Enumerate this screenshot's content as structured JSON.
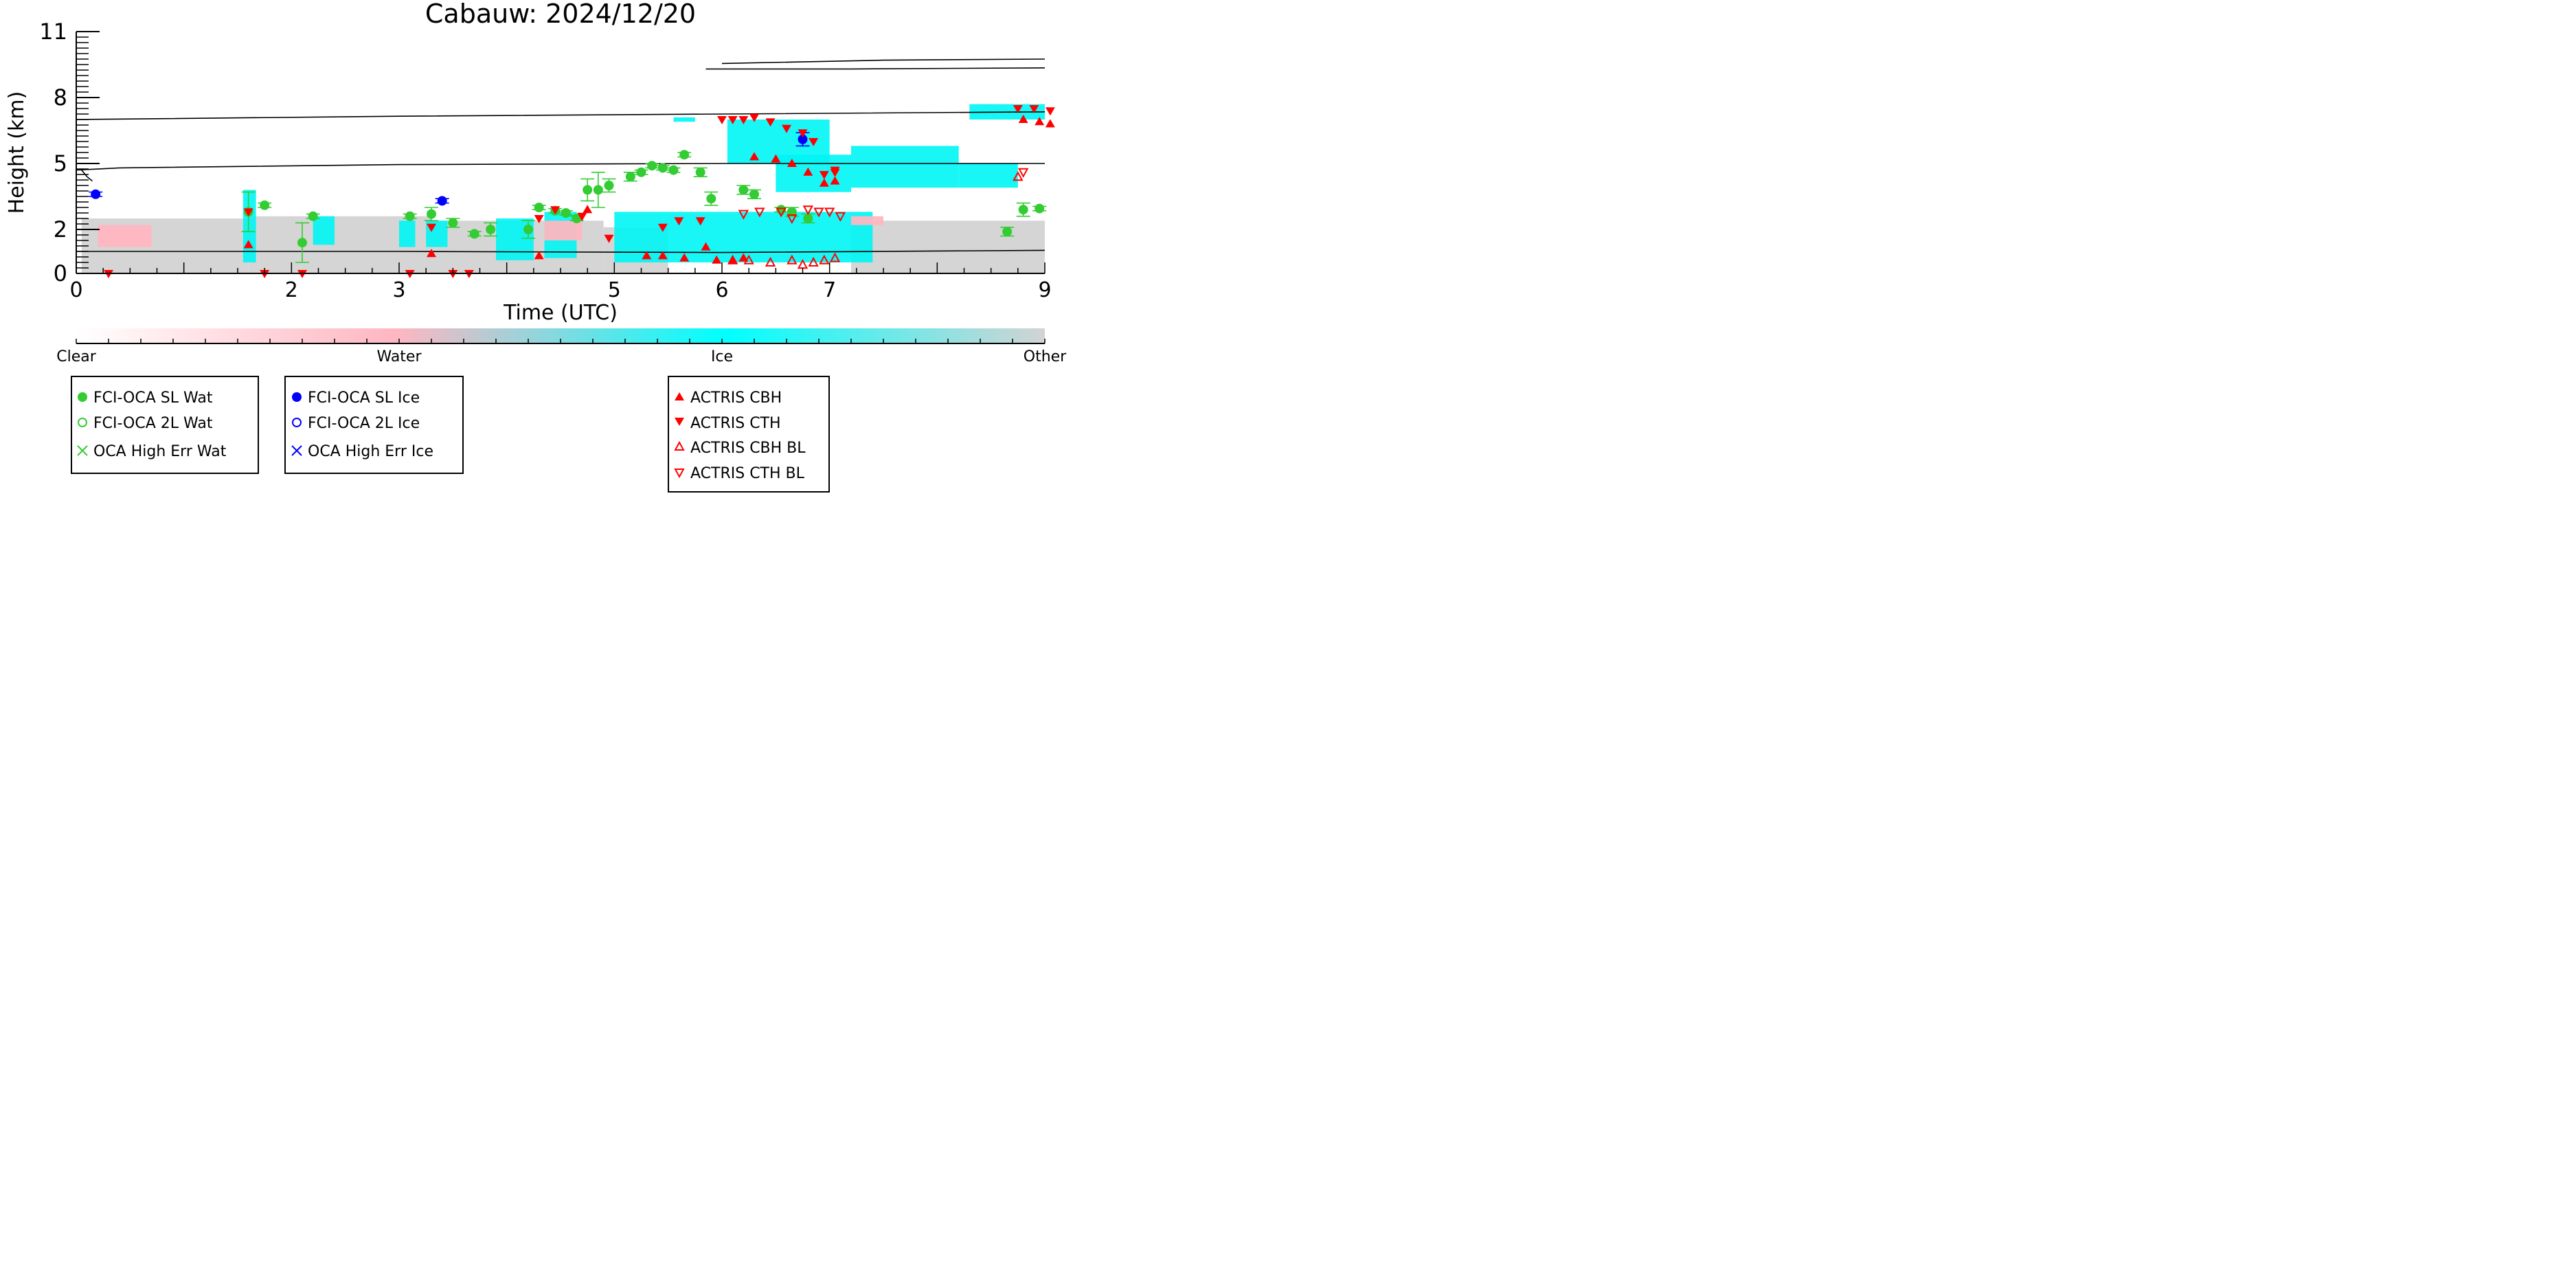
{
  "chart_data": {
    "type": "scatter",
    "title": "Cabauw: 2024/12/20",
    "xlabel": "Time (UTC)",
    "ylabel": "Height (km)",
    "xlim": [
      0,
      9
    ],
    "ylim": [
      0,
      11
    ],
    "x_ticks": [
      0,
      2,
      3,
      5,
      6,
      7,
      9
    ],
    "y_ticks": [
      0,
      2,
      5,
      8,
      11
    ],
    "x_tick_labels": [
      "0",
      "2",
      "3",
      "5",
      "6",
      "7",
      "9"
    ],
    "y_tick_labels": [
      "0",
      "2",
      "5",
      "8",
      "11"
    ],
    "colorbar": {
      "labels": [
        "Clear",
        "Water",
        "Ice",
        "Other"
      ],
      "colors": [
        "#ffffff",
        "#ffb6c1",
        "#00ffff",
        "#d3d3d3"
      ]
    },
    "colors": {
      "sl_wat": "#33cc33",
      "sl_ice": "#0000ff",
      "actris": "#ff0000",
      "lidar_ice": "#00f5f5",
      "lidar_water": "#ffb6c1",
      "lidar_other": "#d3d3d3"
    },
    "legend_groups": [
      [
        "FCI-OCA SL Wat",
        "FCI-OCA 2L Wat",
        "OCA High Err Wat"
      ],
      [
        "FCI-OCA SL Ice",
        "FCI-OCA 2L Ice",
        "OCA High Err Ice"
      ],
      [
        "ACTRIS CBH",
        "ACTRIS CTH",
        "ACTRIS CBH BL",
        "ACTRIS CTH BL"
      ]
    ],
    "series": [
      {
        "name": "FCI-OCA SL Wat",
        "marker": "filled-circle",
        "x": [
          1.6,
          1.75,
          2.1,
          2.2,
          3.1,
          3.3,
          3.5,
          3.7,
          3.85,
          4.2,
          4.3,
          4.45,
          4.55,
          4.65,
          4.75,
          4.85,
          4.95,
          5.15,
          5.25,
          5.35,
          5.45,
          5.55,
          5.65,
          5.8,
          5.9,
          6.2,
          6.3,
          6.55,
          6.65,
          6.8,
          8.65,
          8.8,
          8.95
        ],
        "y": [
          2.8,
          3.1,
          1.4,
          2.6,
          2.6,
          2.7,
          2.3,
          1.8,
          2.0,
          2.0,
          3.0,
          2.85,
          2.75,
          2.5,
          3.8,
          3.8,
          4.0,
          4.4,
          4.6,
          4.9,
          4.8,
          4.7,
          5.4,
          4.6,
          3.4,
          3.8,
          3.6,
          2.9,
          2.8,
          2.5,
          1.9,
          2.9,
          2.95
        ],
        "yerr": [
          0.9,
          0.1,
          0.9,
          0.1,
          0.1,
          0.3,
          0.2,
          0.1,
          0.3,
          0.4,
          0.1,
          0.1,
          0.1,
          0.1,
          0.5,
          0.8,
          0.3,
          0.2,
          0.1,
          0.1,
          0.1,
          0.1,
          0.1,
          0.2,
          0.3,
          0.2,
          0.2,
          0.1,
          0.2,
          0.2,
          0.2,
          0.3,
          0.1
        ]
      },
      {
        "name": "FCI-OCA SL Ice",
        "marker": "filled-circle",
        "x": [
          0.18,
          3.4,
          6.75
        ],
        "y": [
          3.6,
          3.3,
          6.1
        ],
        "yerr": [
          0.1,
          0.1,
          0.3
        ]
      },
      {
        "name": "ACTRIS CBH",
        "marker": "triangle-up",
        "x": [
          1.6,
          3.3,
          4.3,
          4.75,
          5.3,
          5.45,
          5.65,
          5.85,
          5.95,
          6.1,
          6.2,
          6.3,
          6.5,
          6.65,
          6.8,
          6.95,
          7.05,
          8.8,
          8.95,
          9.05
        ],
        "y": [
          1.3,
          0.9,
          0.8,
          2.9,
          0.8,
          0.8,
          0.7,
          1.2,
          0.6,
          0.6,
          0.7,
          5.3,
          5.2,
          5.0,
          4.6,
          4.1,
          4.2,
          7.0,
          6.9,
          6.8
        ],
        "yerr": []
      },
      {
        "name": "ACTRIS CTH",
        "marker": "triangle-down",
        "x": [
          0.3,
          1.6,
          1.75,
          2.1,
          3.1,
          3.3,
          3.5,
          3.65,
          4.3,
          4.45,
          4.7,
          4.95,
          5.45,
          5.6,
          5.8,
          6.0,
          6.1,
          6.2,
          6.3,
          6.45,
          6.6,
          6.75,
          6.85,
          6.95,
          7.05,
          7.05,
          8.75,
          8.9,
          9.05
        ],
        "y": [
          0.0,
          2.8,
          0.0,
          0.0,
          0.0,
          2.1,
          0.0,
          0.0,
          2.5,
          2.9,
          2.6,
          1.6,
          2.1,
          2.4,
          2.4,
          7.0,
          7.0,
          7.0,
          7.1,
          6.9,
          6.6,
          6.4,
          6.0,
          4.5,
          4.7,
          4.6,
          7.5,
          7.5,
          7.4
        ],
        "yerr": []
      },
      {
        "name": "ACTRIS CBH BL",
        "marker": "open-triangle-up",
        "x": [
          6.1,
          6.25,
          6.45,
          6.65,
          6.75,
          6.85,
          6.95,
          7.05,
          8.75
        ],
        "y": [
          0.6,
          0.6,
          0.5,
          0.6,
          0.4,
          0.5,
          0.6,
          0.7,
          4.4
        ],
        "yerr": []
      },
      {
        "name": "ACTRIS CTH BL",
        "marker": "open-triangle-down",
        "x": [
          6.2,
          6.35,
          6.55,
          6.65,
          6.8,
          6.9,
          7.0,
          7.1,
          8.8
        ],
        "y": [
          2.7,
          2.8,
          2.8,
          2.5,
          2.9,
          2.8,
          2.8,
          2.6,
          4.6
        ],
        "yerr": []
      }
    ]
  }
}
